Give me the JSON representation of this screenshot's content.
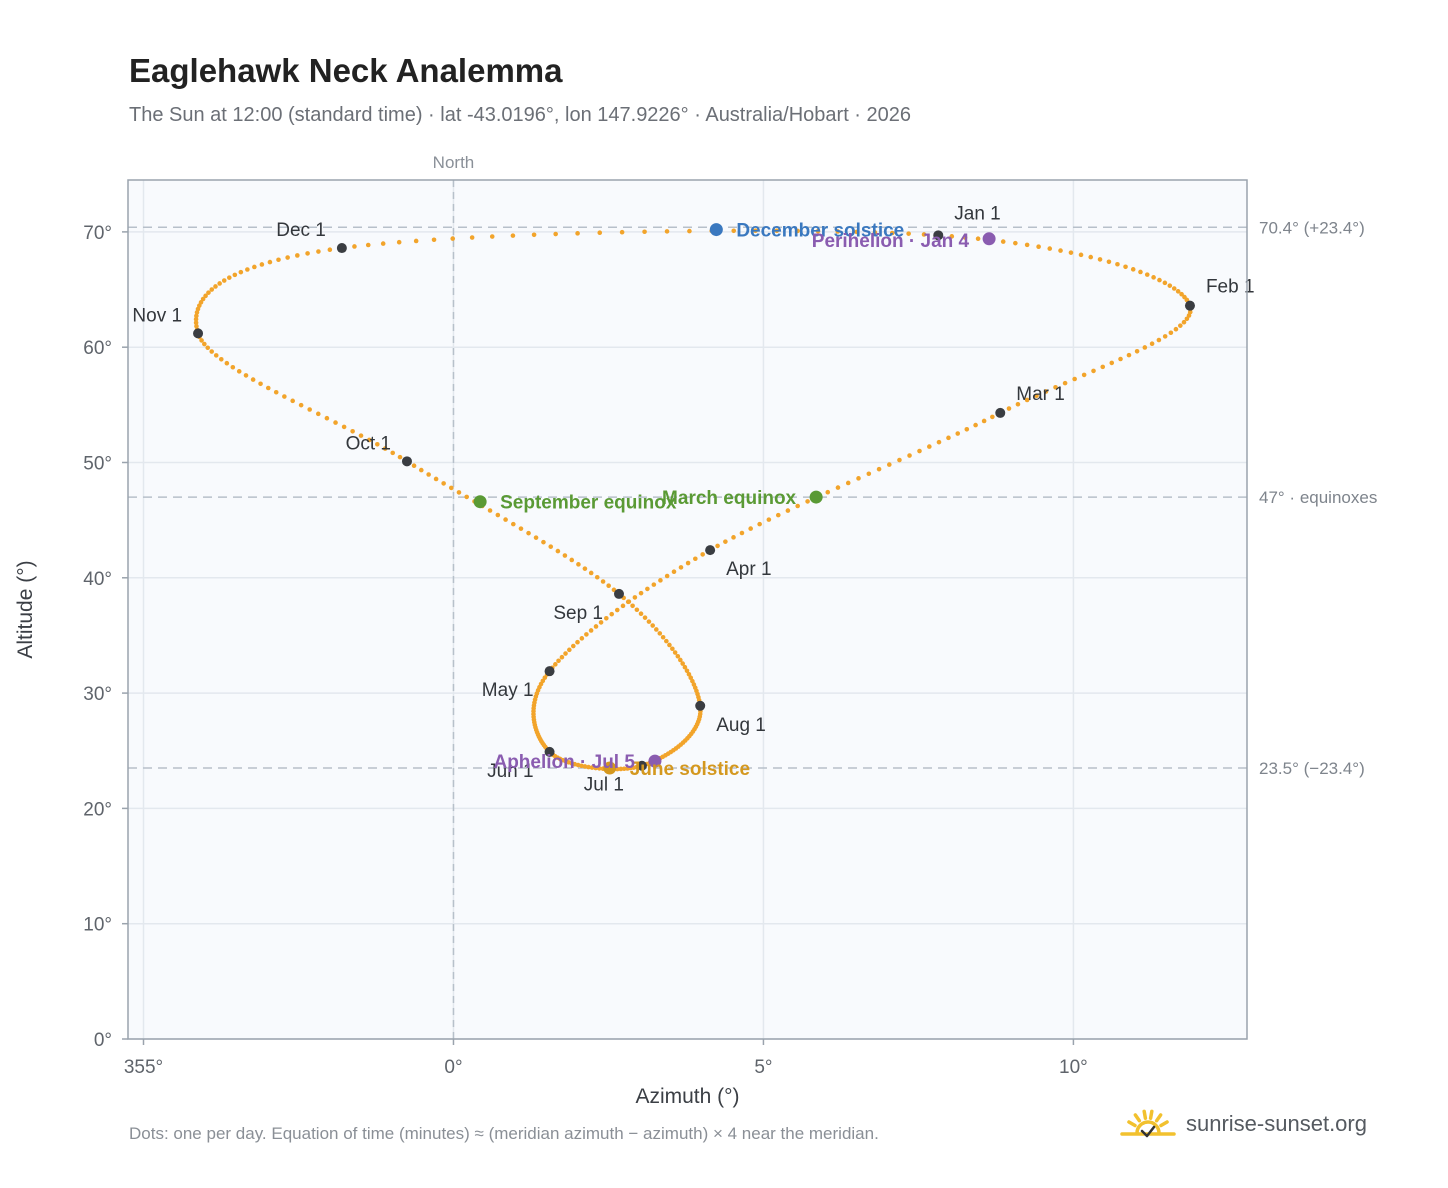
{
  "header": {
    "title": "Eaglehawk Neck Analemma",
    "subtitle": "The Sun at 12:00 (standard time) · lat -43.0196°, lon 147.9226° · Australia/Hobart · 2026"
  },
  "footer": {
    "note": "Dots: one per day. Equation of time (minutes) ≈ (meridian azimuth − azimuth) × 4 near the meridian.",
    "brand": "sunrise-sunset.org"
  },
  "colors": {
    "curve": "#f2a42b",
    "month_dot": "#3a3d42",
    "equinox": "#5a9a35",
    "december_solstice": "#3a78bf",
    "june_solstice": "#d4981f",
    "apsis": "#8a5cb0",
    "grid": "#e3e8ee",
    "plot_bg": "#f8fafd",
    "brand_sun": "#f2c12e"
  },
  "chart_data": {
    "type": "scatter",
    "xlabel": "Azimuth (°)",
    "ylabel": "Altitude (°)",
    "xlim": [
      354.75,
      12.8
    ],
    "ylim": [
      0,
      74.5
    ],
    "x_ticks": [
      "355°",
      "0°",
      "5°",
      "10°"
    ],
    "x_tick_values": [
      355,
      0,
      5,
      10
    ],
    "y_ticks": [
      "0°",
      "10°",
      "20°",
      "30°",
      "40°",
      "50°",
      "60°",
      "70°"
    ],
    "y_tick_values": [
      0,
      10,
      20,
      30,
      40,
      50,
      60,
      70
    ],
    "grid": true,
    "north_label": "North",
    "north_azimuth": 0,
    "reference_lines": [
      {
        "altitude": 70.4,
        "label": "70.4° (+23.4°)"
      },
      {
        "altitude": 47.0,
        "label": "47° · equinoxes"
      },
      {
        "altitude": 23.5,
        "label": "23.5° (−23.4°)"
      }
    ],
    "series_name": "",
    "month_points": [
      {
        "label": "Jan 1",
        "az": 7.82,
        "alt": 69.7
      },
      {
        "label": "Feb 1",
        "az": 11.88,
        "alt": 63.6
      },
      {
        "label": "Mar 1",
        "az": 8.82,
        "alt": 54.3
      },
      {
        "label": "Apr 1",
        "az": 4.14,
        "alt": 42.4
      },
      {
        "label": "May 1",
        "az": 1.55,
        "alt": 31.9
      },
      {
        "label": "Jun 1",
        "az": 1.55,
        "alt": 24.9
      },
      {
        "label": "Jul 1",
        "az": 3.04,
        "alt": 23.7
      },
      {
        "label": "Aug 1",
        "az": 3.98,
        "alt": 28.9
      },
      {
        "label": "Sep 1",
        "az": 2.67,
        "alt": 38.6
      },
      {
        "label": "Oct 1",
        "az": -0.75,
        "alt": 50.1
      },
      {
        "label": "Nov 1",
        "az": -4.12,
        "alt": 61.2
      },
      {
        "label": "Dec 1",
        "az": -1.8,
        "alt": 68.6
      }
    ],
    "events": [
      {
        "label": "March equinox",
        "az": 5.85,
        "alt": 47.0,
        "kind": "equinox"
      },
      {
        "label": "September equinox",
        "az": 0.43,
        "alt": 46.6,
        "kind": "equinox"
      },
      {
        "label": "December solstice",
        "az": 4.24,
        "alt": 70.2,
        "kind": "december_solstice"
      },
      {
        "label": "June solstice",
        "az": 2.52,
        "alt": 23.5,
        "kind": "june_solstice"
      },
      {
        "label": "Perihelion · Jan 4",
        "az": 8.64,
        "alt": 69.4,
        "kind": "apsis"
      },
      {
        "label": "Aphelion · Jul 5",
        "az": 3.25,
        "alt": 24.1,
        "kind": "apsis"
      }
    ]
  }
}
